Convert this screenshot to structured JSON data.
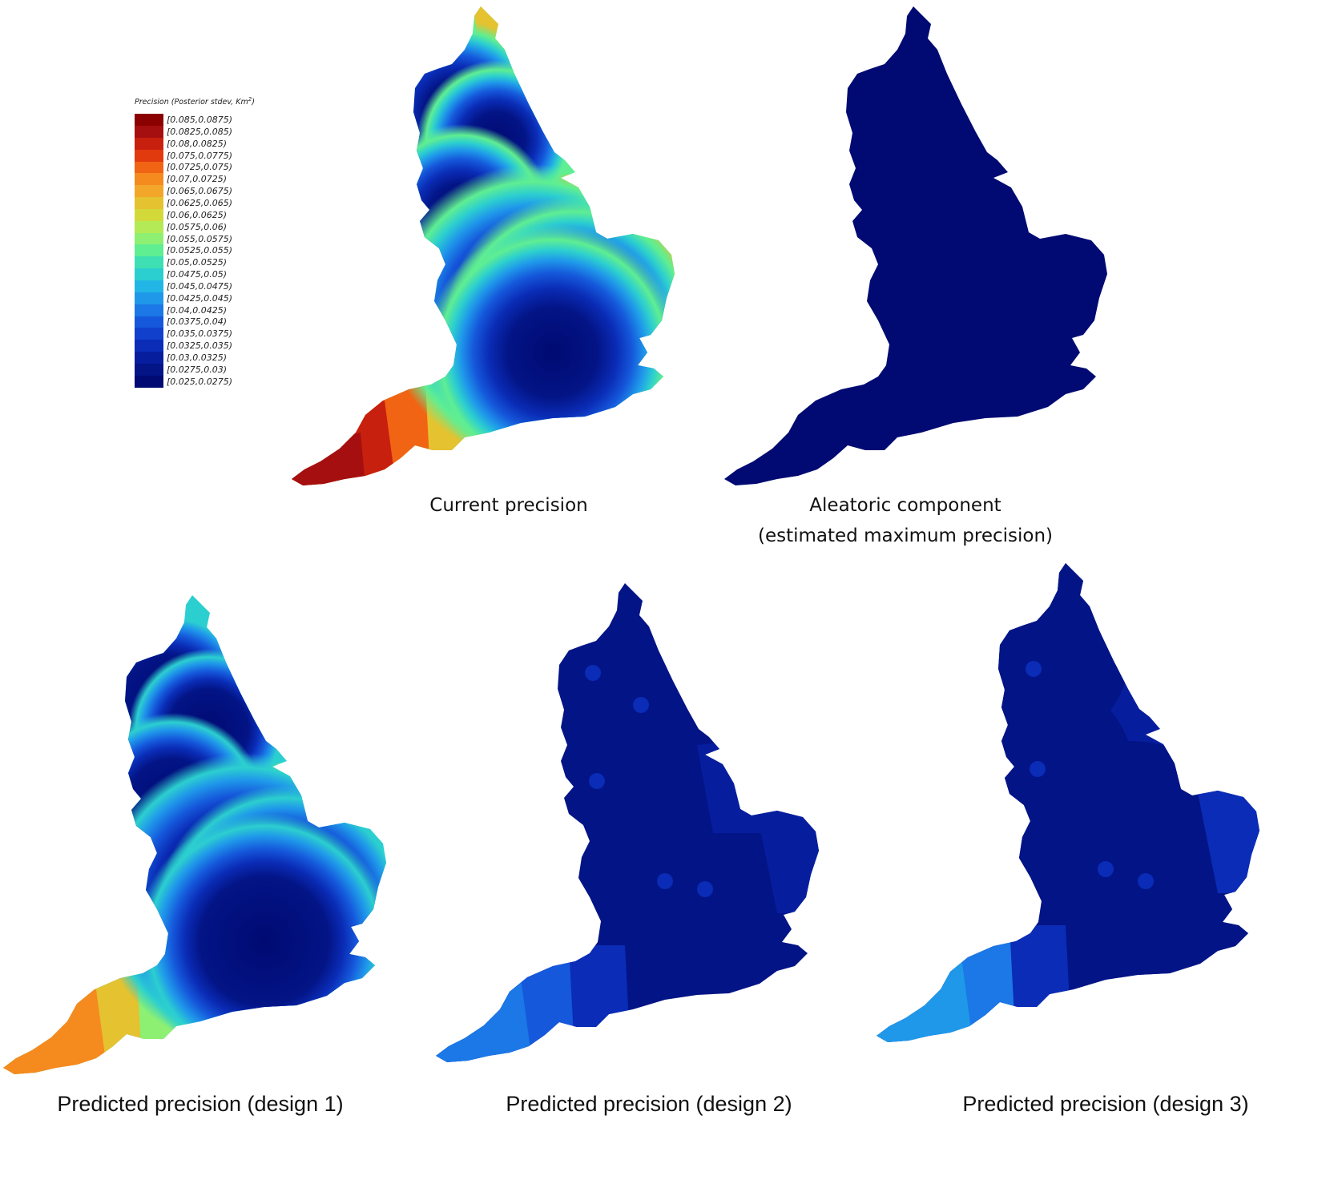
{
  "legend": {
    "title": "Precision (Posterior stdev, Km",
    "title_sup": "2",
    "title_close": ")",
    "entries": [
      {
        "label": "[0.085,0.0875)",
        "color": "#8b0000"
      },
      {
        "label": "[0.0825,0.085)",
        "color": "#a50f0f"
      },
      {
        "label": "[0.08,0.0825)",
        "color": "#c8200e"
      },
      {
        "label": "[0.075,0.0775)",
        "color": "#e23a0f"
      },
      {
        "label": "[0.0725,0.075)",
        "color": "#f06414"
      },
      {
        "label": "[0.07,0.0725)",
        "color": "#f58a1f"
      },
      {
        "label": "[0.065,0.0675)",
        "color": "#f2a72a"
      },
      {
        "label": "[0.0625,0.065)",
        "color": "#e5c22f"
      },
      {
        "label": "[0.06,0.0625)",
        "color": "#d4d93a"
      },
      {
        "label": "[0.0575,0.06)",
        "color": "#b4ea55"
      },
      {
        "label": "[0.055,0.0575)",
        "color": "#8df072"
      },
      {
        "label": "[0.0525,0.055)",
        "color": "#5fee92"
      },
      {
        "label": "[0.05,0.0525)",
        "color": "#3ddfb3"
      },
      {
        "label": "[0.0475,0.05)",
        "color": "#2ccfcf"
      },
      {
        "label": "[0.045,0.0475)",
        "color": "#22b6e6"
      },
      {
        "label": "[0.0425,0.045)",
        "color": "#1f98ea"
      },
      {
        "label": "[0.04,0.0425)",
        "color": "#1b78e6"
      },
      {
        "label": "[0.0375,0.04)",
        "color": "#1558db"
      },
      {
        "label": "[0.035,0.0375)",
        "color": "#1140cc"
      },
      {
        "label": "[0.0325,0.035)",
        "color": "#0a2cb6"
      },
      {
        "label": "[0.03,0.0325)",
        "color": "#061e9e"
      },
      {
        "label": "[0.0275,0.03)",
        "color": "#031486"
      },
      {
        "label": "[0.025,0.0275)",
        "color": "#000a72"
      }
    ]
  },
  "panels": [
    {
      "id": "current",
      "caption_lines": [
        "Current precision"
      ]
    },
    {
      "id": "aleatoric",
      "caption_lines": [
        "Aleatoric component",
        "(estimated maximum precision)"
      ]
    },
    {
      "id": "design1",
      "caption_lines": [
        "Predicted precision (design 1)"
      ]
    },
    {
      "id": "design2",
      "caption_lines": [
        "Predicted precision (design 2)"
      ]
    },
    {
      "id": "design3",
      "caption_lines": [
        "Predicted precision (design 3)"
      ]
    }
  ],
  "colors": {
    "sea": "#ffffff",
    "darkest": "#000a72"
  }
}
